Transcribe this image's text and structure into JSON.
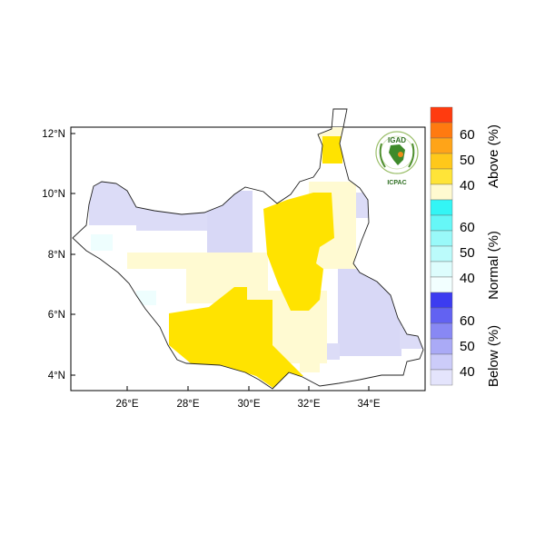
{
  "map": {
    "x_ticks": [
      "26°E",
      "28°E",
      "30°E",
      "32°E",
      "34°E"
    ],
    "y_ticks": [
      "12°N",
      "10°N",
      "8°N",
      "6°N",
      "4°N"
    ]
  },
  "logo": {
    "name": "IGAD",
    "org": "ICPAC"
  },
  "legend": {
    "groups": [
      {
        "title": "Above (%)",
        "labels": [
          "60",
          "50",
          "40"
        ],
        "colors": [
          "#ff3b0f",
          "#ff7a10",
          "#ffa418",
          "#ffc81a",
          "#ffe438",
          "#fffad0"
        ]
      },
      {
        "title": "Normal (%)",
        "labels": [
          "60",
          "50",
          "40"
        ],
        "colors": [
          "#33f5f5",
          "#66f7f7",
          "#99f9f9",
          "#bbfbfb",
          "#ddfdfd",
          "#f2ffff"
        ]
      },
      {
        "title": "Below (%)",
        "labels": [
          "60",
          "50",
          "40"
        ],
        "colors": [
          "#3c3cf0",
          "#6262f2",
          "#8888f4",
          "#aaaaf6",
          "#ccccf9",
          "#e4e4fc"
        ]
      }
    ]
  },
  "colors": {
    "above_40": "#ffe300",
    "above_light": "#fffad2",
    "below_light": "#dcdcf7",
    "normal_light": "#eefefe"
  }
}
